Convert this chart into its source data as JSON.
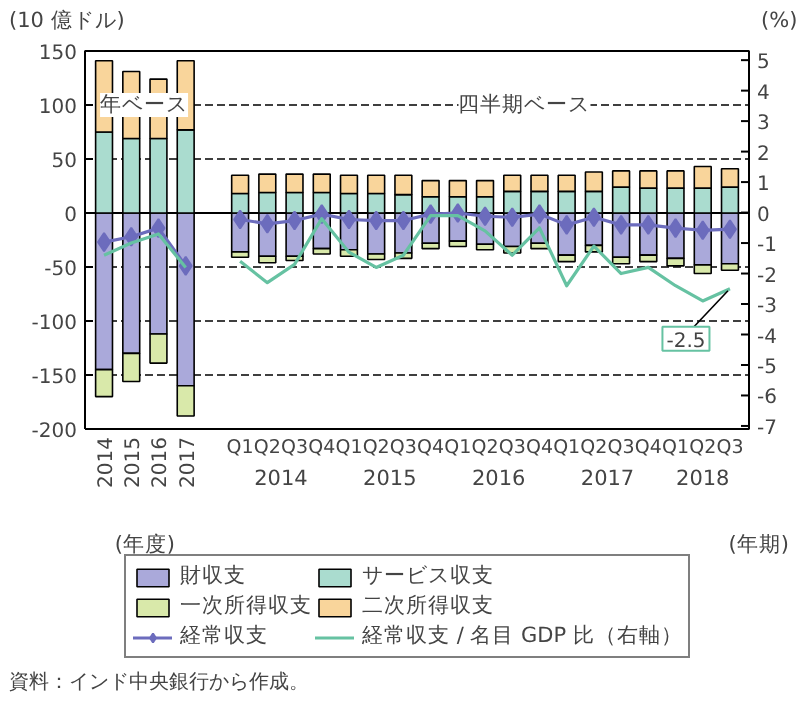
{
  "chart_data": {
    "type": "bar",
    "stacked": true,
    "ylabel": "(10 億ドル)",
    "y2label": "(%)",
    "categories": [
      "2014",
      "2015",
      "2016",
      "2017",
      null,
      "Q1",
      "Q2",
      "Q3",
      "Q4",
      "Q1",
      "Q2",
      "Q3",
      "Q4",
      "Q1",
      "Q2",
      "Q3",
      "Q4",
      "Q1",
      "Q2",
      "Q3",
      "Q4",
      "Q1",
      "Q2",
      "Q3"
    ],
    "series": [
      {
        "name": "財収支",
        "color": "#aaa9da",
        "values": [
          -145,
          -130,
          -112,
          -160,
          null,
          -36,
          -40,
          -40,
          -33,
          -34,
          -38,
          -37,
          -28,
          -26,
          -29,
          -31,
          -28,
          -39,
          -30,
          -41,
          -39,
          -42,
          -48,
          -47
        ]
      },
      {
        "name": "サービス収支",
        "color": "#aadccf",
        "values": [
          75,
          69,
          69,
          77,
          null,
          18,
          19,
          19,
          19,
          18,
          18,
          17,
          15,
          15,
          15,
          20,
          20,
          20,
          20,
          24,
          23,
          23,
          23,
          24
        ]
      },
      {
        "name": "一次所得収支",
        "color": "#d9e9aa",
        "values": [
          -25,
          -26,
          -27,
          -28,
          null,
          -5,
          -6,
          -4,
          -5,
          -6,
          -5,
          -5,
          -5,
          -5,
          -5,
          -6,
          -5,
          -6,
          -6,
          -6,
          -6,
          -7,
          -8,
          -6
        ]
      },
      {
        "name": "二次所得収支",
        "color": "#f9d59b",
        "values": [
          66,
          62,
          55,
          64,
          null,
          17,
          17,
          17,
          17,
          17,
          17,
          18,
          15,
          15,
          15,
          15,
          15,
          15,
          18,
          15,
          16,
          16,
          20,
          17
        ]
      },
      {
        "name": "経常収支",
        "type": "line",
        "marker": "diamond",
        "color": "#6c6cbd",
        "values": [
          -27,
          -22,
          -14,
          -49,
          null,
          -6,
          -10,
          -7,
          -1,
          -6,
          -7,
          -7,
          -1,
          0,
          -3,
          -4,
          -1,
          -11,
          -4,
          -11,
          -11,
          -14,
          -16,
          -15
        ]
      },
      {
        "name": "経常収支 / 名目 GDP 比（右軸）",
        "type": "line",
        "axis": "y2",
        "color": "#66c2a2",
        "values": [
          -1.4,
          -1.0,
          -0.7,
          -1.8,
          null,
          -1.6,
          -2.3,
          -1.7,
          -0.2,
          -1.3,
          -1.8,
          -1.4,
          -0.1,
          -0.1,
          -0.6,
          -1.4,
          -0.5,
          -2.4,
          -1.1,
          -2.0,
          -1.8,
          -2.4,
          -2.9,
          -2.5
        ],
        "value_labels": [
          null,
          null,
          null,
          null,
          null,
          null,
          null,
          null,
          null,
          null,
          null,
          null,
          null,
          null,
          null,
          null,
          null,
          null,
          null,
          null,
          null,
          null,
          null,
          "-2.5"
        ]
      }
    ],
    "ylim": [
      -200,
      150
    ],
    "yticks": [
      -200,
      -150,
      -100,
      -50,
      0,
      50,
      100,
      150
    ],
    "y2lim": [
      -7.1,
      5.3
    ],
    "y2ticks": [
      -7,
      -6,
      -5,
      -4,
      -3,
      -2,
      -1,
      0,
      1,
      2,
      3,
      4,
      5
    ],
    "grid": "y",
    "legend": "bottom",
    "annotations": [
      "年ベース",
      "四半期ベース",
      "2014",
      "2015",
      "2016",
      "2017",
      "2018",
      "(年度)",
      "(年期)",
      "資料：インド中央銀行から作成。"
    ]
  }
}
